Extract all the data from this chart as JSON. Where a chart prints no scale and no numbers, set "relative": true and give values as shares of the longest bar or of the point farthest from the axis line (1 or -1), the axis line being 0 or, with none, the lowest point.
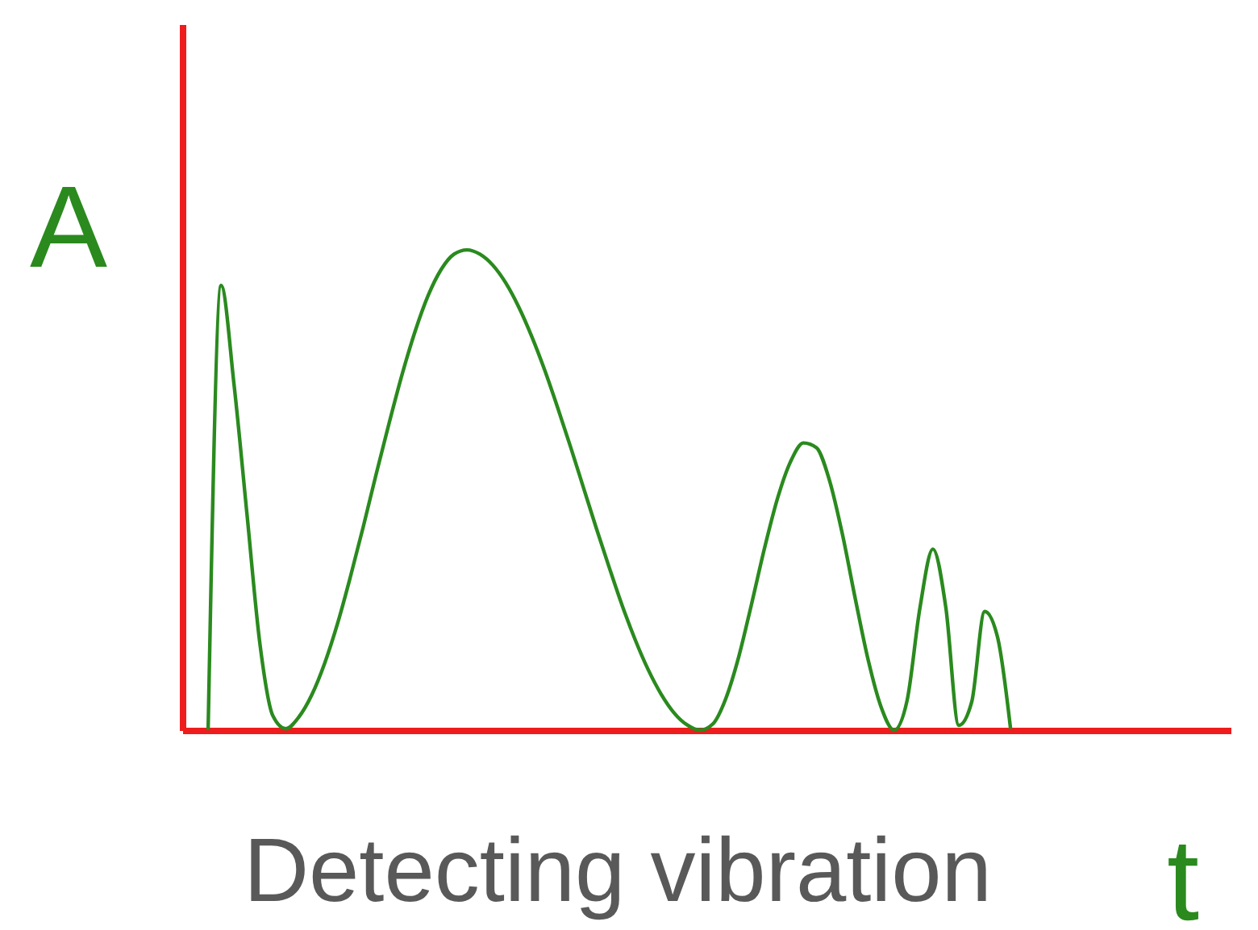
{
  "chart_data": {
    "type": "line",
    "relative": true,
    "tick_labels": false,
    "xlabel": "t",
    "ylabel": "A",
    "annotations": [
      "Detecting vibration"
    ],
    "categories": [
      null,
      null,
      null,
      null,
      null,
      null,
      null,
      null,
      null,
      null,
      null,
      null,
      null,
      null,
      null,
      null,
      null,
      null,
      null,
      null,
      null,
      null,
      null,
      null,
      null,
      null,
      null,
      null,
      null,
      null,
      null,
      null,
      null,
      null,
      null,
      null,
      null,
      null,
      null,
      null,
      null,
      null,
      null,
      null,
      null,
      null,
      null,
      null,
      null,
      null,
      null,
      null,
      null,
      null,
      null,
      null,
      null,
      null,
      null,
      null,
      null,
      null,
      null,
      null,
      null,
      null,
      null,
      null,
      null,
      null,
      null,
      null,
      null,
      null,
      null,
      null,
      null,
      null,
      null,
      null,
      null,
      null
    ],
    "series": [
      {
        "color": "#2a8a1e",
        "values": [
          null,
          null,
          0,
          0.926,
          0.72,
          0.45,
          0.18,
          0.03,
          0.003,
          0.027,
          0.073,
          0.139,
          0.222,
          0.32,
          0.425,
          0.535,
          0.641,
          0.742,
          0.831,
          0.905,
          0.959,
          0.991,
          1.0,
          0.991,
          0.968,
          0.931,
          0.881,
          0.82,
          0.75,
          0.672,
          0.59,
          0.505,
          0.42,
          0.338,
          0.259,
          0.188,
          0.126,
          0.075,
          0.036,
          0.011,
          0,
          0.013,
          0.066,
          0.153,
          0.264,
          0.38,
          0.483,
          0.559,
          0.598,
          0.588,
          0.521,
          0.409,
          0.274,
          0.146,
          0.048,
          0,
          0.061,
          0.255,
          0.377,
          0.255,
          0.01,
          0.059,
          0.247,
          0.193,
          0.003,
          null,
          null,
          null,
          null,
          null,
          null,
          null,
          null,
          null,
          null,
          null,
          null,
          null,
          null,
          null,
          null,
          null
        ]
      }
    ]
  }
}
